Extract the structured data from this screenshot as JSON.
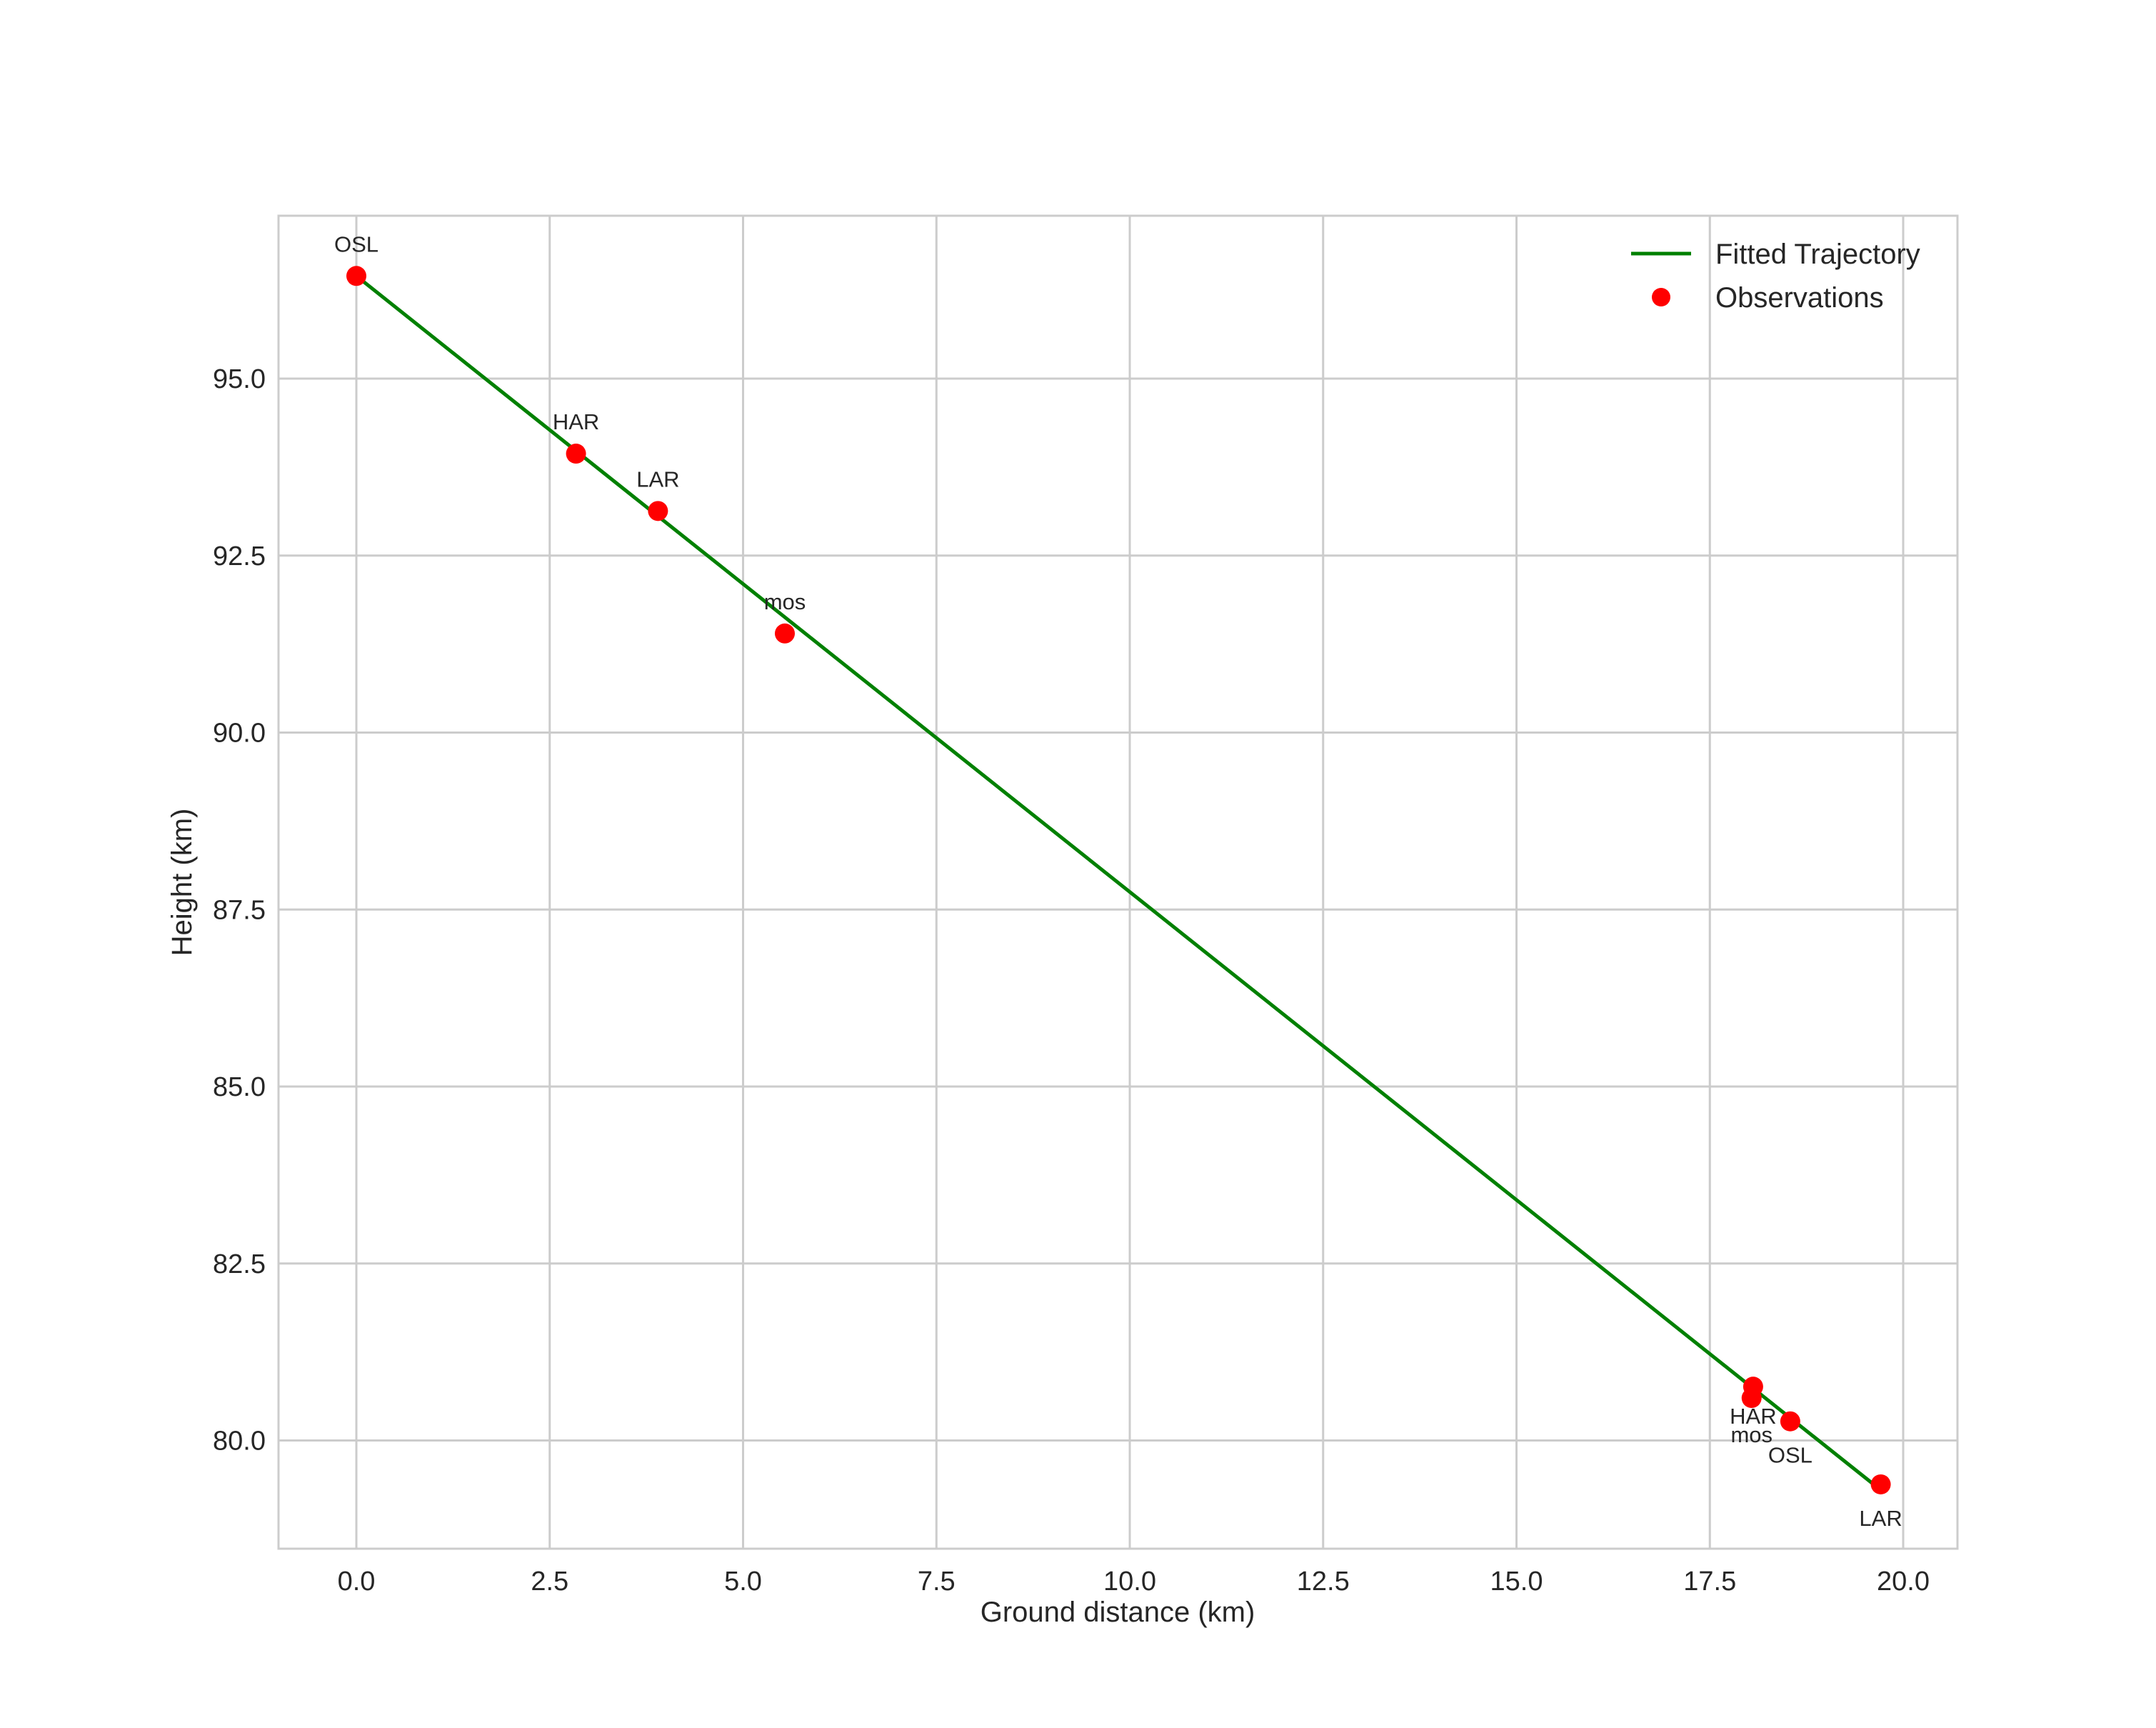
{
  "chart_data": {
    "type": "line",
    "title": "",
    "xlabel": "Ground distance (km)",
    "ylabel": "Height (km)",
    "xlim": [
      -1.0,
      20.7
    ],
    "ylim": [
      78.4,
      97.3
    ],
    "grid": true,
    "legend_position": "upper right",
    "x_ticks": [
      "0.0",
      "2.5",
      "5.0",
      "7.5",
      "10.0",
      "12.5",
      "15.0",
      "17.5",
      "20.0"
    ],
    "y_ticks": [
      "80.0",
      "82.5",
      "85.0",
      "87.5",
      "90.0",
      "92.5",
      "95.0"
    ],
    "series": [
      {
        "name": "Fitted Trajectory",
        "type": "line",
        "color": "#008000",
        "x": [
          0.0,
          19.71
        ],
        "y": [
          96.45,
          79.3
        ]
      },
      {
        "name": "Observations",
        "type": "scatter",
        "color": "#ff0000",
        "points": [
          {
            "label": "OSL",
            "x": 0.0,
            "y": 96.45,
            "label_pos": "above"
          },
          {
            "label": "HAR",
            "x": 2.84,
            "y": 93.94,
            "label_pos": "above"
          },
          {
            "label": "LAR",
            "x": 3.9,
            "y": 93.13,
            "label_pos": "above"
          },
          {
            "label": "mos",
            "x": 5.54,
            "y": 91.4,
            "label_pos": "above"
          },
          {
            "label": "HAR",
            "x": 18.06,
            "y": 80.76,
            "label_pos": "below"
          },
          {
            "label": "mos",
            "x": 18.04,
            "y": 80.6,
            "label_pos": "below"
          },
          {
            "label": "OSL",
            "x": 18.54,
            "y": 80.27,
            "label_pos": "below"
          },
          {
            "label": "LAR",
            "x": 19.71,
            "y": 79.38,
            "label_pos": "below"
          }
        ]
      }
    ]
  },
  "legend": {
    "items": [
      {
        "label": "Fitted Trajectory",
        "symbol": "line",
        "color": "#008000"
      },
      {
        "label": "Observations",
        "symbol": "dot",
        "color": "#ff0000"
      }
    ]
  },
  "style": {
    "grid_color": "#cccccc",
    "spine_color": "#cccccc",
    "text_color": "#262626"
  }
}
